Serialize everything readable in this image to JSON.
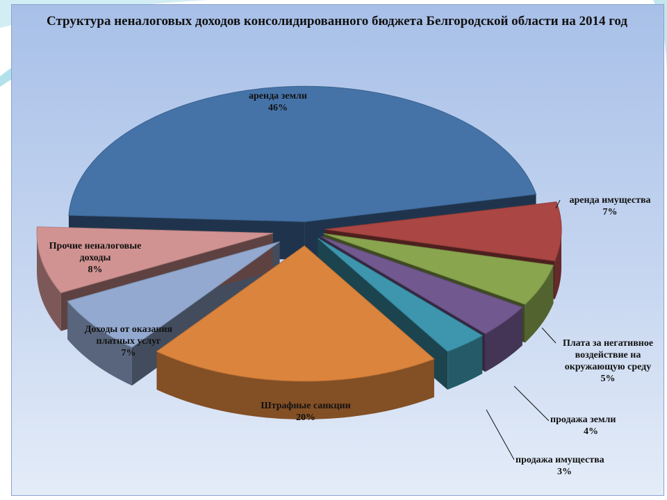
{
  "chart_data": {
    "type": "pie",
    "title": "Структура  неналоговых доходов консолидированного бюджета Белгородской области на 2014 год",
    "slices": [
      {
        "name": "аренда земли",
        "value": 46,
        "label": "46%",
        "color": "#4573a8"
      },
      {
        "name": "аренда имущества",
        "value": 7,
        "label": "7%",
        "color": "#aa4643"
      },
      {
        "name": "Плата за негативное воздействие на окружающую среду",
        "value": 5,
        "label": "5%",
        "color": "#89a54e"
      },
      {
        "name": "продажа земли",
        "value": 4,
        "label": "4%",
        "color": "#71588f"
      },
      {
        "name": "продажа имущества",
        "value": 3,
        "label": "3%",
        "color": "#3d96ae"
      },
      {
        "name": "Штрафные санкции",
        "value": 20,
        "label": "20%",
        "color": "#db843d"
      },
      {
        "name": "Доходы от оказания платных услуг",
        "value": 7,
        "label": "7%",
        "color": "#93a9cf"
      },
      {
        "name": "Прочие неналоговые доходы",
        "value": 8,
        "label": "8%",
        "color": "#d19392"
      }
    ],
    "legend": "none",
    "style": "3d-exploded-pie"
  },
  "labels": {
    "arenda_zemli": [
      "аренда земли",
      "46%"
    ],
    "arenda_imushchestva": [
      "аренда имущества",
      "7%"
    ],
    "plata": [
      "Плата за негативное",
      "воздействие на",
      "окружающую среду",
      "5%"
    ],
    "prodazha_zemli": [
      "продажа земли",
      "4%"
    ],
    "prodazha_imushchestva": [
      "продажа имущества",
      "3%"
    ],
    "shtrafy": [
      "Штрафные санкции",
      "20%"
    ],
    "platnye_uslugi": [
      "Доходы от оказания",
      "платных услуг",
      "7%"
    ],
    "prochie": [
      "Прочие неналоговые",
      "доходы",
      "8%"
    ]
  }
}
